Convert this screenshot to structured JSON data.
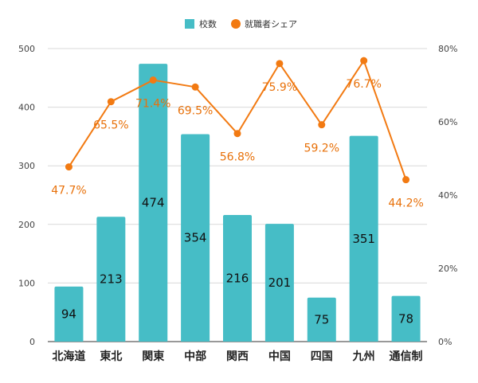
{
  "chart_data": {
    "type": "bar",
    "categories": [
      "北海道",
      "東北",
      "関東",
      "中部",
      "関西",
      "中国",
      "四国",
      "九州",
      "通信制"
    ],
    "series": [
      {
        "name": "校数",
        "kind": "bar",
        "axis": "left",
        "color": "#46bdc6",
        "values": [
          94,
          213,
          474,
          354,
          216,
          201,
          75,
          351,
          78
        ],
        "labels": [
          "94",
          "213",
          "474",
          "354",
          "216",
          "201",
          "75",
          "351",
          "78"
        ]
      },
      {
        "name": "就職者シェア",
        "kind": "line",
        "axis": "right",
        "color": "#f27a12",
        "values": [
          47.7,
          65.5,
          71.4,
          69.5,
          56.8,
          75.9,
          59.2,
          76.7,
          44.2
        ],
        "labels": [
          "47.7%",
          "65.5%",
          "71.4%",
          "69.5%",
          "56.8%",
          "75.9%",
          "59.2%",
          "76.7%",
          "44.2%"
        ]
      }
    ],
    "y_left": {
      "range": [
        0,
        500
      ],
      "ticks": [
        "0",
        "100",
        "200",
        "300",
        "400",
        "500"
      ]
    },
    "y_right": {
      "range": [
        0,
        80
      ],
      "ticks": [
        "0%",
        "20%",
        "40%",
        "60%",
        "80%"
      ]
    },
    "legend": {
      "position": "top-center"
    },
    "grid": true
  }
}
